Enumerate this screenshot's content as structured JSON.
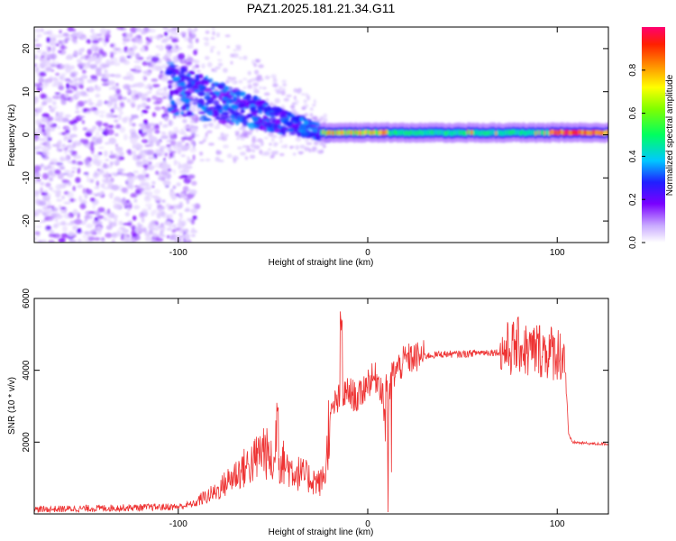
{
  "title": "PAZ1.2025.181.21.34.G11",
  "chart_data": [
    {
      "type": "heatmap",
      "xlabel": "Height of straight line (km)",
      "ylabel": "Frequency (Hz)",
      "xlim": [
        -176,
        127
      ],
      "ylim": [
        -25,
        25
      ],
      "xticks": [
        -100,
        0,
        100
      ],
      "yticks": [
        -20,
        -10,
        0,
        10,
        20
      ],
      "grid": false,
      "colorbar": {
        "label": "Normalized spectral amplitude",
        "range": [
          0,
          1
        ],
        "ticks": [
          0.0,
          0.2,
          0.4,
          0.6,
          0.8
        ]
      },
      "description_points": [
        {
          "x": -100,
          "y": 12,
          "value": 0.25
        },
        {
          "x": -80,
          "y": 5,
          "value": 0.3
        },
        {
          "x": -60,
          "y": 0,
          "value": 0.35
        },
        {
          "x": -40,
          "y": 3,
          "value": 0.4
        },
        {
          "x": -20,
          "y": 0,
          "value": 0.6
        },
        {
          "x": 0,
          "y": 0.5,
          "value": 0.9
        },
        {
          "x": 20,
          "y": 0.5,
          "value": 0.5
        },
        {
          "x": 50,
          "y": 0.5,
          "value": 0.45
        },
        {
          "x": 80,
          "y": 0.5,
          "value": 0.55
        },
        {
          "x": 100,
          "y": 0.5,
          "value": 0.8
        },
        {
          "x": 120,
          "y": 0.6,
          "value": 0.95
        }
      ]
    },
    {
      "type": "line",
      "xlabel": "Height of straight line (km)",
      "ylabel": "SNR (10 * v/v)",
      "xlim": [
        -176,
        127
      ],
      "ylim": [
        0,
        6000
      ],
      "xticks": [
        -100,
        0,
        100
      ],
      "yticks": [
        2000,
        4000,
        6000
      ],
      "grid": false,
      "color": "#ee3333",
      "series": [
        {
          "x": [
            -176,
            -150,
            -120,
            -100,
            -90,
            -80,
            -70,
            -60,
            -55,
            -50,
            -45,
            -40,
            -35,
            -30,
            -25,
            -22,
            -20,
            -18,
            -15,
            -10,
            -5,
            0,
            5,
            8,
            10,
            12,
            15,
            20,
            30,
            40,
            50,
            60,
            70,
            75,
            80,
            85,
            90,
            95,
            100,
            104,
            106,
            108,
            112,
            120,
            127
          ],
          "y": [
            120,
            150,
            180,
            200,
            300,
            500,
            900,
            1200,
            1500,
            1100,
            1200,
            1000,
            900,
            800,
            700,
            1000,
            2500,
            3000,
            3200,
            3400,
            3200,
            3700,
            3800,
            3400,
            1500,
            3800,
            4000,
            4300,
            4400,
            4450,
            4450,
            4500,
            4500,
            4600,
            4700,
            4500,
            4600,
            4500,
            4500,
            4400,
            2200,
            2000,
            1980,
            1950,
            1950
          ]
        }
      ]
    }
  ],
  "colors": {
    "line": "#ee3333",
    "axis": "#000000"
  }
}
